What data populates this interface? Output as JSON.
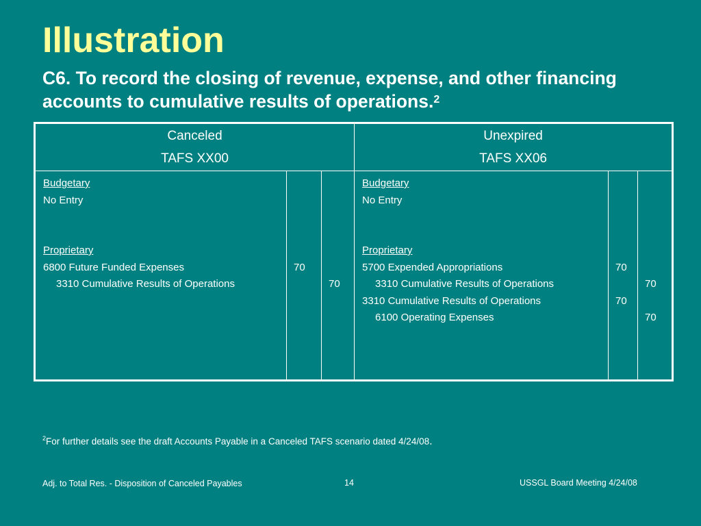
{
  "slide": {
    "title": "Illustration",
    "subtitle": "C6. To record the closing of revenue, expense, and other financing accounts to cumulative results of operations.",
    "subtitle_footnote_ref": "2"
  },
  "table": {
    "left_header": {
      "line1": "Canceled",
      "line2": "TAFS XX00"
    },
    "right_header": {
      "line1": "Unexpired",
      "line2": "TAFS XX06"
    },
    "left": {
      "budgetary_label": "Budgetary",
      "budgetary_text": "No Entry",
      "proprietary_label": "Proprietary",
      "entries": [
        {
          "account": "6800 Future Funded Expenses",
          "debit": "70",
          "credit": ""
        },
        {
          "account": "3310 Cumulative Results of Operations",
          "debit": "",
          "credit": "70"
        }
      ]
    },
    "right": {
      "budgetary_label": "Budgetary",
      "budgetary_text": "No Entry",
      "proprietary_label": "Proprietary",
      "entries": [
        {
          "account": "5700 Expended Appropriations",
          "debit": "70",
          "credit": ""
        },
        {
          "account": "3310 Cumulative Results of Operations",
          "debit": "",
          "credit": "70"
        },
        {
          "account": "3310 Cumulative Results of Operations",
          "debit": "70",
          "credit": ""
        },
        {
          "account": "6100 Operating Expenses",
          "debit": "",
          "credit": "70"
        }
      ]
    }
  },
  "footnote": {
    "marker": "2",
    "text": "For further details see the draft Accounts Payable in a Canceled TAFS scenario dated 4/24/08",
    "end": "."
  },
  "footer": {
    "left": "Adj. to Total Res. - Disposition of Canceled Payables",
    "page_number": "14",
    "right": "USSGL Board Meeting 4/24/08"
  },
  "colors": {
    "background": "#008080",
    "title": "#ffff99",
    "text": "#ffffff"
  }
}
